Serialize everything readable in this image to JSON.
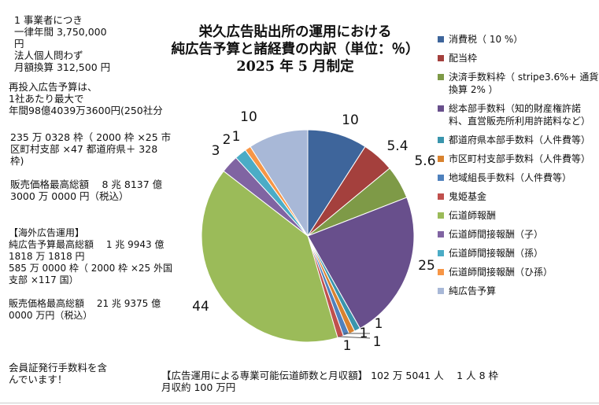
{
  "notes": {
    "fee": "1 事業者につき\n一律年間 3,750,000\n円\n法人個人問わず\n月額換算 312,500 円",
    "reinvest": "再投入広告予算は、\n1社あたり最大で\n年間98億4039万3600円(250社分",
    "slots": "235 万 0328 枠（ 2000 枠 ×25 市\n区町村支部 ×47 都道府県＋ 328\n枠)",
    "sales": "販売価格最高総額　 8 兆 8137 億\n3000 万 0000 円（税込）",
    "overseas": "【海外広告運用】\n純広告予算最高総額　 1 兆 9943 億\n1818 万 1818 円\n585 万 0000 枠（ 2000 枠 ×25 外国\n支部 ×117 国）",
    "overseas_sales": "販売価格最高総額　 21 兆 9375 億\n0000 万円（税込）",
    "membership": "会員証発行手数料を含\nんでいます！",
    "bottom": "【広告運用による専業可能伝道師数と月収額】 102 万 5041 人　 1 人 8 枠\n月収約 100 万円"
  },
  "chart_data": {
    "type": "pie",
    "title": "栄久広告貼出所の運用における\n純広告予算と諸経費の内訳（単位：％）\n2025 年 5 月制定",
    "legend_position": "right",
    "categories": [
      "消費税（ 10 %）",
      "配当枠",
      "決済手数料枠（ stripe3.6%+ 通貨換算 2% ）",
      "総本部手数料（知的財産権許諾料、直営販売所利用許諾料など）",
      "都道府県本部手数料（人件費等）",
      "市区町村支部手数料（人件費等）",
      "地域組長手数料（人件費等）",
      "鬼姫基金",
      "伝道師報酬",
      "伝道師間接報酬（子）",
      "伝道師間接報酬（孫）",
      "伝道師間接報酬（ひ孫）",
      "純広告予算"
    ],
    "values": [
      10,
      5.4,
      5.6,
      25,
      1,
      1,
      1,
      1,
      44,
      3,
      2,
      1,
      10
    ],
    "labels": [
      "10",
      "5.4",
      "5.6",
      "25",
      "1",
      "1",
      "1",
      "1",
      "44",
      "3",
      "2",
      "1",
      "10"
    ],
    "colors": [
      "#3E659B",
      "#A4403D",
      "#7E9A47",
      "#684F8C",
      "#3A95AD",
      "#D8822F",
      "#4F81BD",
      "#C0504D",
      "#9BBB59",
      "#8064A2",
      "#4BACC6",
      "#F79646",
      "#A8B8D7"
    ]
  }
}
